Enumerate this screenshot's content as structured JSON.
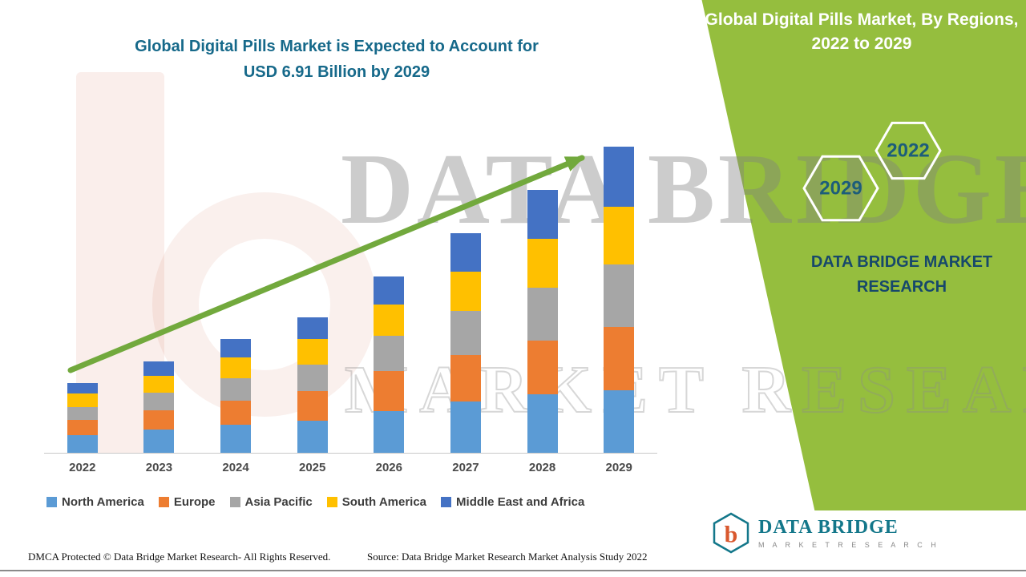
{
  "header": {
    "main_title_line1": "Global Digital Pills Market is Expected to Account for",
    "main_title_line2": "USD 6.91 Billion by 2029"
  },
  "side_panel": {
    "title_line1": "Global Digital Pills Market, By Regions,",
    "title_line2": "2022 to 2029",
    "hexagon_years": [
      "2029",
      "2022"
    ],
    "brand_line1": "DATA BRIDGE MARKET",
    "brand_line2": "RESEARCH",
    "background_color": "#95BE3E",
    "hexagon_year_color": "#1D5D7A"
  },
  "watermarks": {
    "brand_text": "DATA BRIDGE",
    "brand_text2": "MARKET RESEARCH"
  },
  "chart_data": {
    "type": "bar",
    "stacked": true,
    "title": "Global Digital Pills Market is Expected to Account for USD 6.91 Billion by 2029",
    "unit": "USD Billion",
    "categories": [
      "2022",
      "2023",
      "2024",
      "2025",
      "2026",
      "2027",
      "2028",
      "2029"
    ],
    "series": [
      {
        "name": "North America",
        "color": "#5B9BD5",
        "values": [
          0.4,
          0.52,
          0.63,
          0.73,
          0.95,
          1.15,
          1.33,
          1.41
        ]
      },
      {
        "name": "Europe",
        "color": "#ED7D31",
        "values": [
          0.34,
          0.44,
          0.55,
          0.66,
          0.9,
          1.05,
          1.2,
          1.43
        ]
      },
      {
        "name": "Asia Pacific",
        "color": "#A6A6A6",
        "values": [
          0.3,
          0.4,
          0.5,
          0.6,
          0.8,
          1.0,
          1.2,
          1.41
        ]
      },
      {
        "name": "South America",
        "color": "#FFC000",
        "values": [
          0.3,
          0.38,
          0.48,
          0.58,
          0.69,
          0.88,
          1.1,
          1.3
        ]
      },
      {
        "name": "Middle East and Africa",
        "color": "#4472C4",
        "values": [
          0.24,
          0.32,
          0.41,
          0.49,
          0.64,
          0.88,
          1.1,
          1.36
        ]
      }
    ],
    "totals": [
      1.58,
      2.06,
      2.57,
      3.06,
      3.98,
      4.96,
      5.93,
      6.91
    ],
    "ylim": [
      0,
      7
    ],
    "grid": false,
    "axis_labels_visible": false,
    "legend_position": "bottom",
    "trend_arrow": true,
    "arrow_color": "#72A93D"
  },
  "footer": {
    "dmca": "DMCA Protected © Data Bridge Market Research- All Rights Reserved.",
    "source": "Source: Data Bridge Market Research Market Analysis Study 2022"
  },
  "logo": {
    "monogram": "b",
    "brand": "DATA BRIDGE",
    "subtitle": "M A R K E T   R E S E A R C H"
  }
}
